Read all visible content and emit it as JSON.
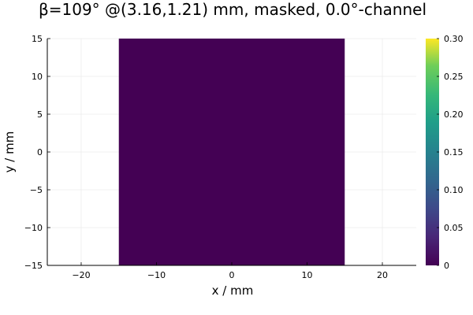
{
  "chart_data": {
    "type": "heatmap",
    "title": "β=109° @(3.16,1.21) mm, masked, 0.0°-channel",
    "xlabel": "x / mm",
    "ylabel": "y / mm",
    "xlim": [
      -24.5,
      24.5
    ],
    "ylim": [
      -15,
      15
    ],
    "xticks": [
      -20,
      -10,
      0,
      10,
      20
    ],
    "yticks": [
      -15,
      -10,
      -5,
      0,
      5,
      10,
      15
    ],
    "xtick_labels": [
      "−20",
      "−10",
      "0",
      "10",
      "20"
    ],
    "ytick_labels": [
      "−15",
      "−10",
      "−5",
      "0",
      "5",
      "10",
      "15"
    ],
    "grid": true,
    "colormap": "viridis",
    "filled_region": {
      "x": [
        -15,
        15
      ],
      "y": [
        -15,
        15
      ],
      "value": 0
    },
    "colorbar": {
      "range": [
        0,
        0.3
      ],
      "ticks": [
        0,
        0.05,
        0.1,
        0.15,
        0.2,
        0.25,
        0.3
      ],
      "tick_labels": [
        "0",
        "0.05",
        "0.10",
        "0.15",
        "0.20",
        "0.25",
        "0.30"
      ]
    }
  }
}
